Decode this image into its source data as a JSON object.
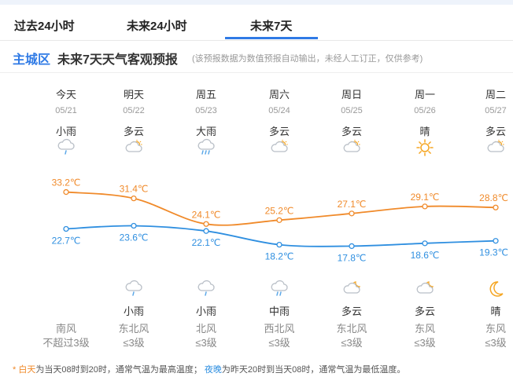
{
  "tabs": [
    {
      "label": "过去24小时",
      "active": false
    },
    {
      "label": "未来24小时",
      "active": false
    },
    {
      "label": "未来7天",
      "active": true
    }
  ],
  "header": {
    "region": "主城区",
    "title": "未来7天天气客观预报",
    "note": "(该预报数据为数值预报自动输出，未经人工订正，仅供参考)"
  },
  "days": [
    {
      "name": "今天",
      "date": "05/21",
      "day_weather": "小雨",
      "day_icon": "light-rain-icon",
      "high": "33.2℃",
      "low": "22.7℃",
      "night_icon": "",
      "night_weather": "",
      "wind_dir": "南风",
      "wind_level": "不超过3级"
    },
    {
      "name": "明天",
      "date": "05/22",
      "day_weather": "多云",
      "day_icon": "partly-cloudy-icon",
      "high": "31.4℃",
      "low": "23.6℃",
      "night_icon": "light-rain-icon",
      "night_weather": "小雨",
      "wind_dir": "东北风",
      "wind_level": "≤3级"
    },
    {
      "name": "周五",
      "date": "05/23",
      "day_weather": "大雨",
      "day_icon": "heavy-rain-icon",
      "high": "24.1℃",
      "low": "22.1℃",
      "night_icon": "light-rain-icon",
      "night_weather": "小雨",
      "wind_dir": "北风",
      "wind_level": "≤3级"
    },
    {
      "name": "周六",
      "date": "05/24",
      "day_weather": "多云",
      "day_icon": "partly-cloudy-icon",
      "high": "25.2℃",
      "low": "18.2℃",
      "night_icon": "moderate-rain-icon",
      "night_weather": "中雨",
      "wind_dir": "西北风",
      "wind_level": "≤3级"
    },
    {
      "name": "周日",
      "date": "05/25",
      "day_weather": "多云",
      "day_icon": "partly-cloudy-icon",
      "high": "27.1℃",
      "low": "17.8℃",
      "night_icon": "partly-cloudy-night-icon",
      "night_weather": "多云",
      "wind_dir": "东北风",
      "wind_level": "≤3级"
    },
    {
      "name": "周一",
      "date": "05/26",
      "day_weather": "晴",
      "day_icon": "sunny-icon",
      "high": "29.1℃",
      "low": "18.6℃",
      "night_icon": "partly-cloudy-night-icon",
      "night_weather": "多云",
      "wind_dir": "东风",
      "wind_level": "≤3级"
    },
    {
      "name": "周二",
      "date": "05/27",
      "day_weather": "多云",
      "day_icon": "partly-cloudy-icon",
      "high": "28.8℃",
      "low": "19.3℃",
      "night_icon": "clear-night-icon",
      "night_weather": "晴",
      "wind_dir": "东风",
      "wind_level": "≤3级"
    }
  ],
  "chart_data": {
    "type": "line",
    "categories": [
      "05/21",
      "05/22",
      "05/23",
      "05/24",
      "05/25",
      "05/26",
      "05/27"
    ],
    "series": [
      {
        "values": [
          33.2,
          31.4,
          24.1,
          25.2,
          27.1,
          29.1,
          28.8
        ],
        "color": "#f08a2a"
      },
      {
        "values": [
          22.7,
          23.6,
          22.1,
          18.2,
          17.8,
          18.6,
          19.3
        ],
        "color": "#2f8fe0"
      }
    ],
    "labels_high": [
      "33.2℃",
      "31.4℃",
      "24.1℃",
      "25.2℃",
      "27.1℃",
      "29.1℃",
      "28.8℃"
    ],
    "labels_low": [
      "22.7℃",
      "23.6℃",
      "22.1℃",
      "18.2℃",
      "17.8℃",
      "18.6℃",
      "19.3℃"
    ],
    "grid": false,
    "legend": "none"
  },
  "footnote": {
    "star": "*",
    "day_word": "白天",
    "day_text": "为当天08时到20时，通常气温为最高温度；",
    "night_word": "夜晚",
    "night_text": "为昨天20时到当天08时，通常气温为最低温度。"
  },
  "colors": {
    "accent": "#2f7ae5",
    "high_line": "#f08a2a",
    "low_line": "#2f8fe0"
  }
}
